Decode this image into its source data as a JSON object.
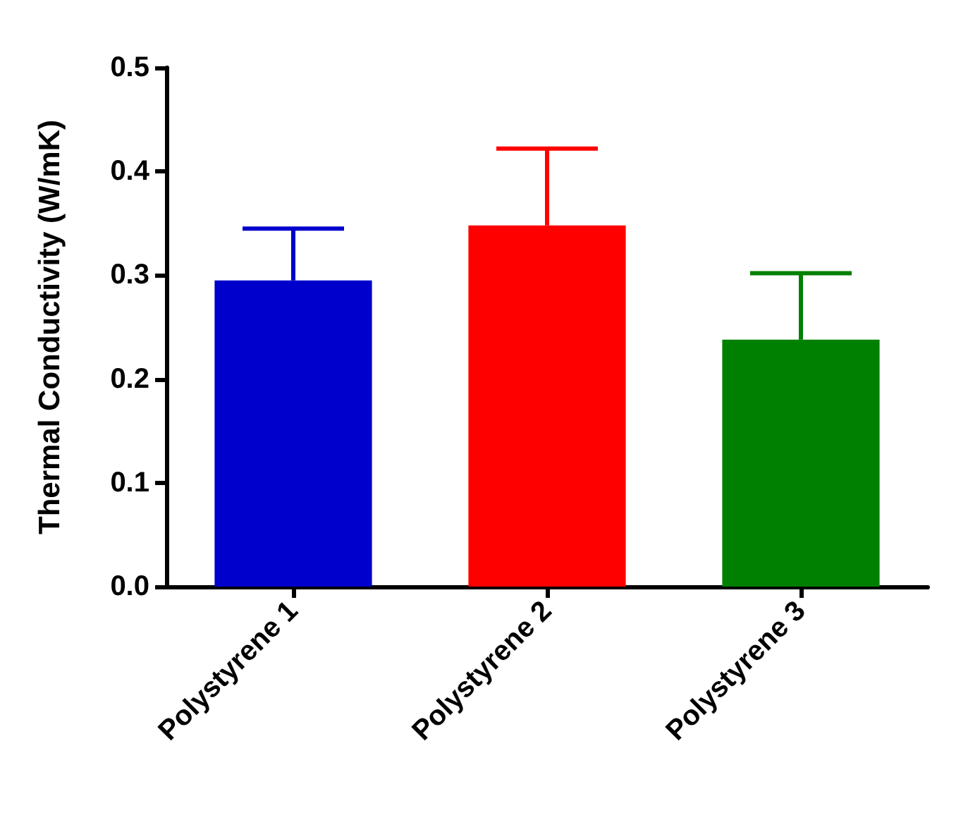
{
  "chart_data": {
    "type": "bar",
    "ylabel": "Thermal Conductivity (W/mK)",
    "categories": [
      "Polystyrene 1",
      "Polystyrene 2",
      "Polystyrene 3"
    ],
    "values": [
      0.295,
      0.348,
      0.238
    ],
    "colors": [
      "#0000cc",
      "#ff0000",
      "#008000"
    ],
    "errors": [
      [
        0.295,
        0.345
      ],
      [
        0.348,
        0.422
      ],
      [
        0.238,
        0.302
      ]
    ],
    "ylim": [
      0,
      0.5
    ],
    "yticks": [
      {
        "value": 0,
        "label": "0.0"
      },
      0.1,
      0.2,
      0.3,
      0.4,
      0.5
    ],
    "grid": false
  }
}
